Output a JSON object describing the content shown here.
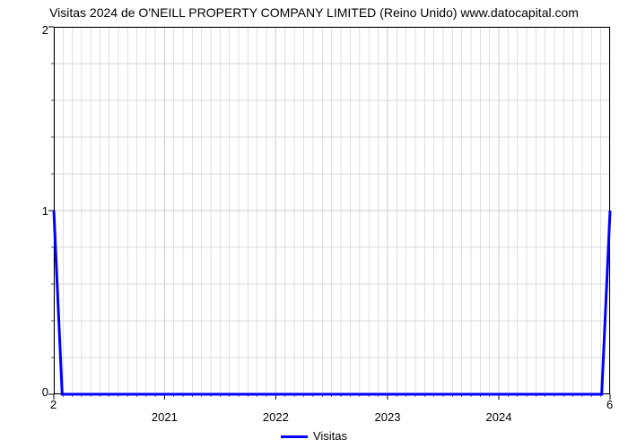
{
  "chart": {
    "type": "line",
    "title": "Visitas 2024 de O'NEILL PROPERTY COMPANY LIMITED (Reino Unido) www.datocapital.com",
    "title_fontsize": 14,
    "background_color": "#ffffff",
    "grid_color": "#cccccc",
    "axis_color": "#000000",
    "plot_border_color": "#000000",
    "yaxis": {
      "min": 0,
      "max": 2,
      "tick_positions": [
        0,
        1,
        2
      ],
      "tick_labels": [
        "0",
        "1",
        "2"
      ],
      "minor_ticks": 4,
      "fontsize": 13
    },
    "xaxis": {
      "start_label": "2",
      "end_label": "6",
      "tick_labels": [
        "2021",
        "2022",
        "2023",
        "2024"
      ],
      "tick_positions": [
        0.199,
        0.399,
        0.6,
        0.8
      ],
      "minor_ticks": 11,
      "fontsize": 13
    },
    "series": {
      "name": "Visitas",
      "color": "#0000ff",
      "line_width": 3,
      "points": [
        {
          "x": 0.0,
          "y": 1.0
        },
        {
          "x": 0.015,
          "y": 0.0
        },
        {
          "x": 0.985,
          "y": 0.0
        },
        {
          "x": 1.0,
          "y": 1.0
        }
      ]
    },
    "legend": {
      "label": "Visitas",
      "fontsize": 13
    }
  }
}
